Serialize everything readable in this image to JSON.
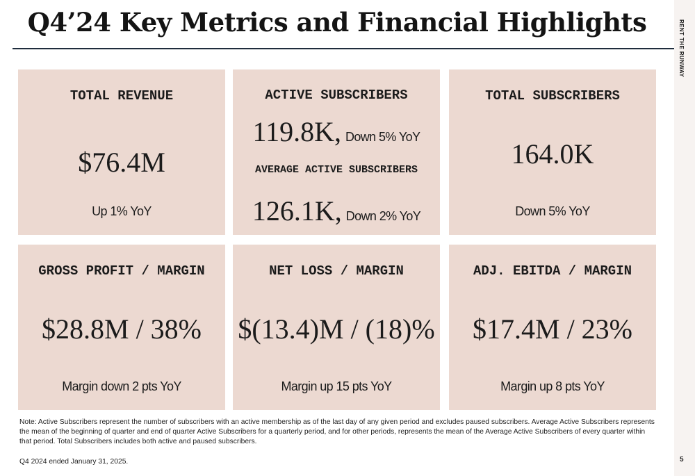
{
  "title": "Q4’24 Key Metrics and Financial Highlights",
  "brand": "RENT THE RUNWAY",
  "page_number": "5",
  "cards": {
    "total_revenue": {
      "title": "TOTAL REVENUE",
      "value": "$76.4M",
      "sub": "Up 1% YoY"
    },
    "active_subscribers": {
      "title": "ACTIVE SUBSCRIBERS",
      "value": "119.8K,",
      "change": "Down  5% YoY",
      "avg_title": "AVERAGE ACTIVE SUBSCRIBERS",
      "avg_value": "126.1K,",
      "avg_change": "Down 2% YoY"
    },
    "total_subscribers": {
      "title": "TOTAL SUBSCRIBERS",
      "value": "164.0K",
      "sub": "Down 5% YoY"
    },
    "gross_profit": {
      "title": "GROSS PROFIT / MARGIN",
      "value": "$28.8M / 38%",
      "sub": "Margin down 2 pts YoY"
    },
    "net_loss": {
      "title": "NET LOSS / MARGIN",
      "value": "$(13.4)M / (18)%",
      "sub": "Margin up 15 pts YoY"
    },
    "adj_ebitda": {
      "title": "ADJ. EBITDA / MARGIN",
      "value": "$17.4M / 23%",
      "sub": "Margin up 8 pts YoY"
    }
  },
  "note": "Note: Active Subscribers represent the number of subscribers with an active membership as of the last day of any given period and excludes paused subscribers. Average Active Subscribers represents the mean of the beginning of quarter and end of quarter Active Subscribers for a quarterly period,  and for other periods, represents the mean of the Average Active Subscribers of every quarter within that period.  Total Subscribers includes both active and paused subscribers.",
  "footnote": "Q4 2024 ended January 31, 2025.",
  "colors": {
    "card_bg": "#ecd9d1",
    "rule": "#1f2d3d",
    "text": "#1b1b1b"
  }
}
